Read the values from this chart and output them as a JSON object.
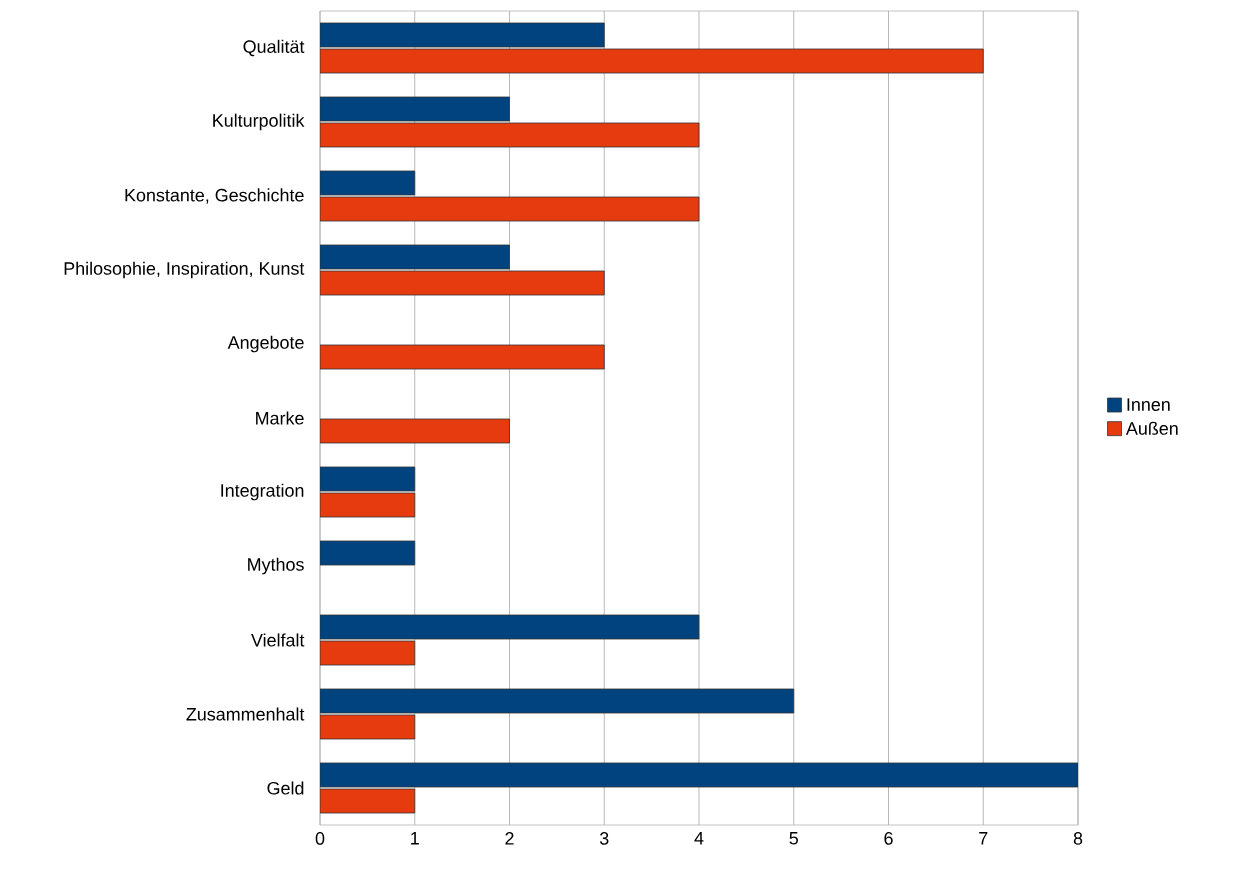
{
  "chart_data": {
    "type": "bar",
    "orientation": "horizontal",
    "categories": [
      "Qualität",
      "Kulturpolitik",
      "Konstante, Geschichte",
      "Philosophie, Inspiration, Kunst",
      "Angebote",
      "Marke",
      "Integration",
      "Mythos",
      "Vielfalt",
      "Zusammenhalt",
      "Geld"
    ],
    "series": [
      {
        "name": "Innen",
        "color": "#00437f",
        "values": [
          3,
          2,
          1,
          2,
          null,
          null,
          1,
          1,
          4,
          5,
          8
        ]
      },
      {
        "name": "Außen",
        "color": "#e63b0e",
        "values": [
          7,
          4,
          4,
          3,
          3,
          2,
          1,
          null,
          1,
          1,
          1
        ]
      }
    ],
    "xlim": [
      0,
      8
    ],
    "xticks": [
      0,
      1,
      2,
      3,
      4,
      5,
      6,
      7,
      8
    ],
    "grid": "x",
    "legend": "right"
  }
}
